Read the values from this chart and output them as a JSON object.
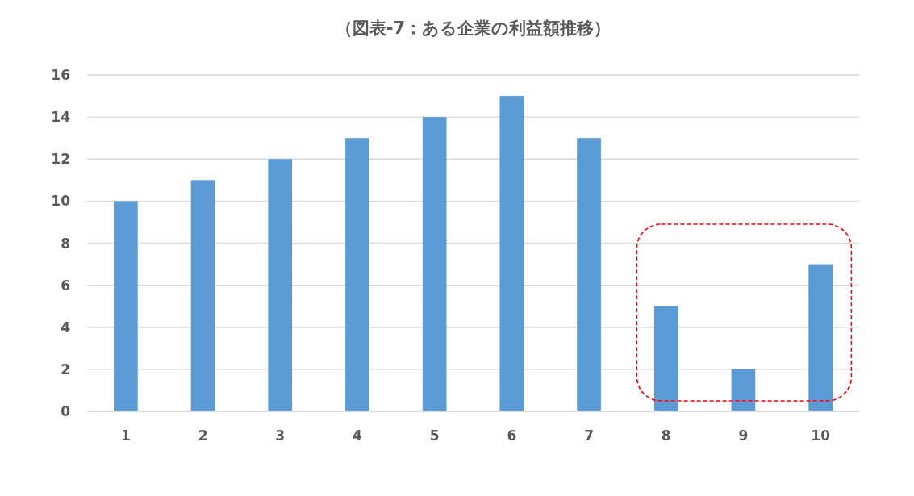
{
  "chart_data": {
    "type": "bar",
    "title": "（図表-7：ある企業の利益額推移）",
    "categories": [
      "1",
      "2",
      "3",
      "4",
      "5",
      "6",
      "7",
      "8",
      "9",
      "10"
    ],
    "values": [
      10,
      11,
      12,
      13,
      14,
      15,
      13,
      5,
      2,
      7
    ],
    "color": "#5b9bd5",
    "ylim": [
      0,
      16
    ],
    "yticks": [
      0,
      2,
      4,
      6,
      8,
      10,
      12,
      14,
      16
    ],
    "grid": "y"
  }
}
